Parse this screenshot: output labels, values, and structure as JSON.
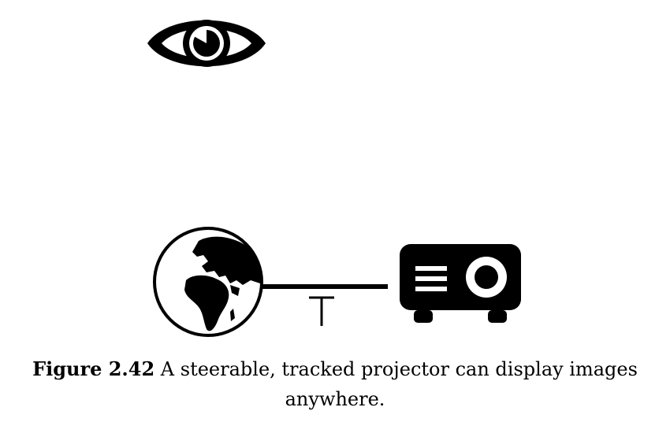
{
  "diagram": {
    "icons": {
      "viewer": "eye-icon",
      "surface": "globe-icon",
      "device": "projector-icon"
    },
    "connector_label": "T"
  },
  "caption": {
    "figure_number": "Figure 2.42",
    "text": " A steerable, tracked projector can display images anywhere."
  }
}
